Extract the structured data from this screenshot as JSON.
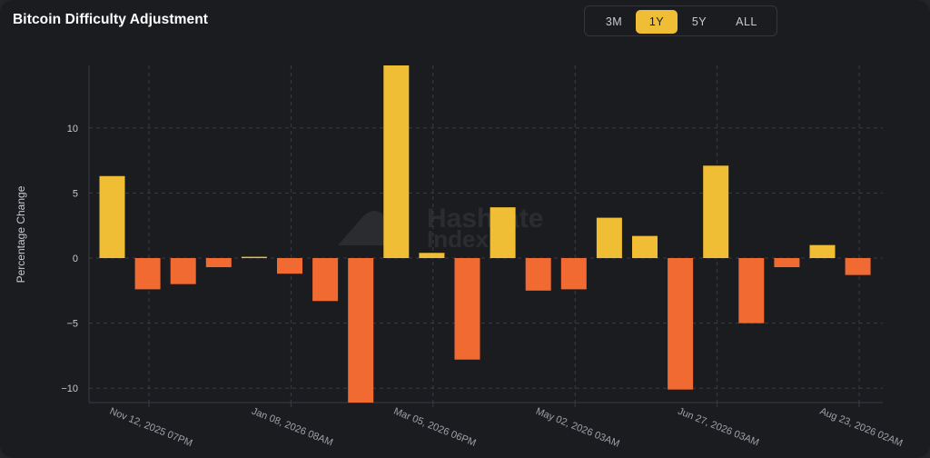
{
  "title": "Bitcoin Difficulty Adjustment",
  "range_buttons": [
    {
      "label": "3M",
      "active": false
    },
    {
      "label": "1Y",
      "active": true
    },
    {
      "label": "5Y",
      "active": false
    },
    {
      "label": "ALL",
      "active": false
    }
  ],
  "watermark": {
    "line1": "Hashrate",
    "line2": "Index",
    "icon": "hashrate-index-logo-icon"
  },
  "colors": {
    "positive": "#f0be35",
    "negative": "#f06a32"
  },
  "chart_data": {
    "type": "bar",
    "ylabel": "Percentage Change",
    "xlabel": "",
    "ylim": [
      -11.1,
      14.8
    ],
    "yticks": [
      -10,
      -5,
      0,
      5,
      10
    ],
    "grid": true,
    "legend": "none",
    "values": [
      6.3,
      -2.4,
      -2.0,
      -0.7,
      0.1,
      -1.2,
      -3.3,
      -11.1,
      14.8,
      0.4,
      -7.8,
      3.9,
      -2.5,
      -2.4,
      3.1,
      1.7,
      -10.1,
      7.1,
      -5.0,
      -0.7,
      1.0,
      -1.3
    ],
    "x_tick_labels": [
      "Nov 12, 2025 07PM",
      "Jan 08, 2026 08AM",
      "Mar 05, 2026 06PM",
      "May 02, 2026 03AM",
      "Jun 27, 2026 03AM",
      "Aug 23, 2026 02AM"
    ]
  }
}
